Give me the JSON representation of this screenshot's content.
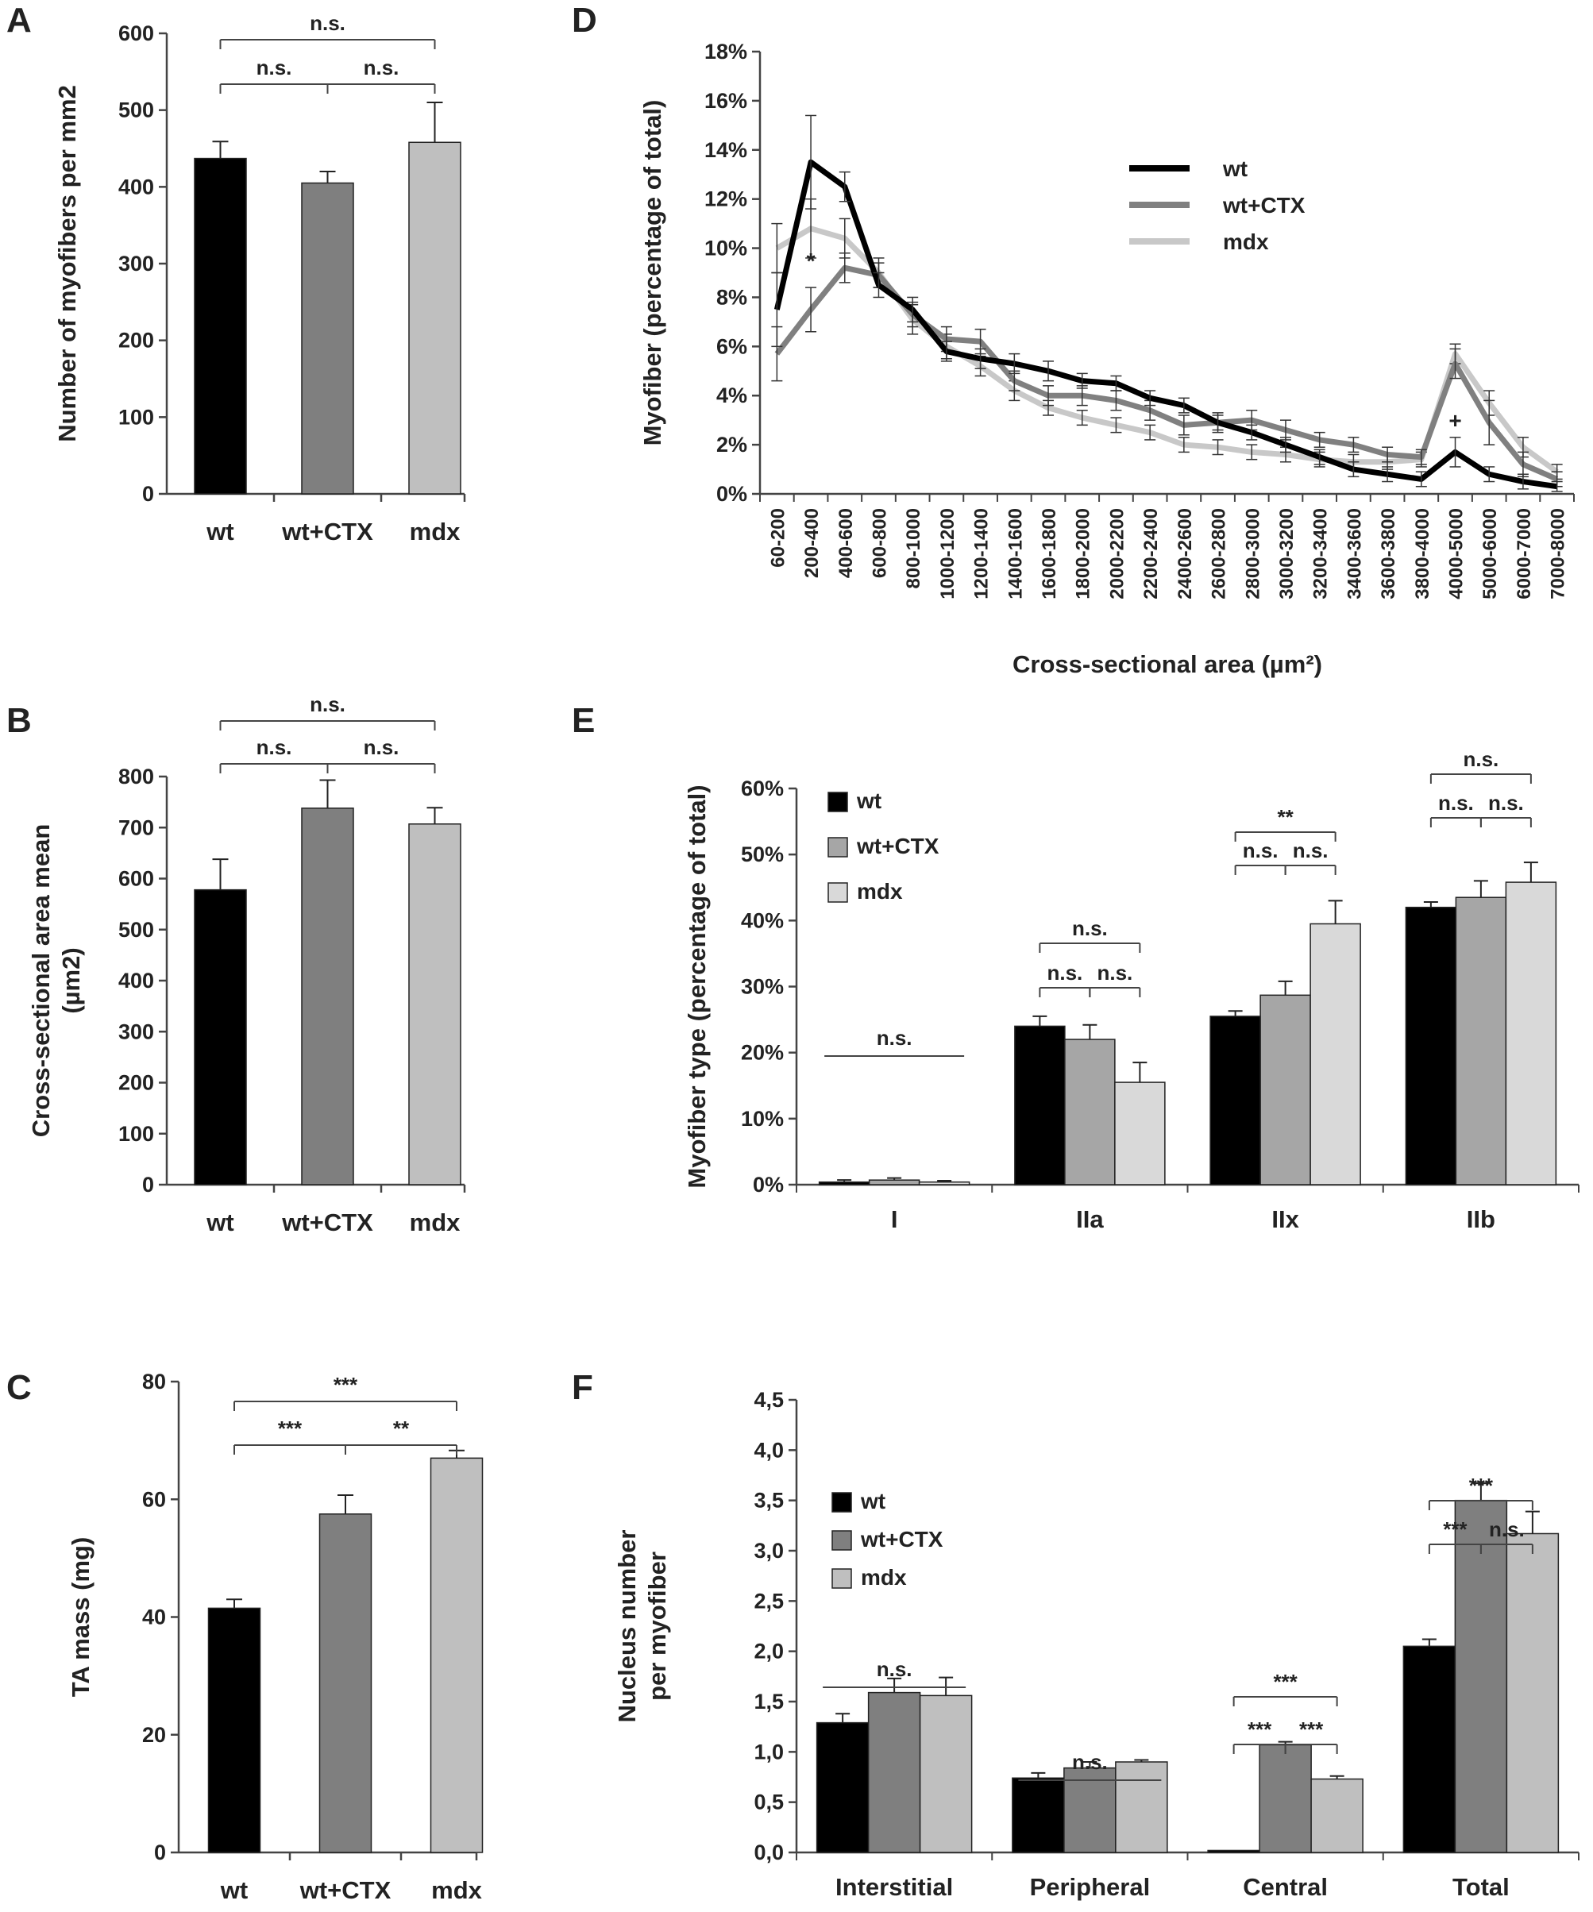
{
  "figure": {
    "series_names": [
      "wt",
      "wt+CTX",
      "mdx"
    ],
    "colors": {
      "wt": "#000000",
      "ctx": "#7f7f7f",
      "mdx": "#bfbfbf",
      "ctx_line": "#808080",
      "mdx_line": "#c8c8c8",
      "e_ctx": "#a6a6a6",
      "e_mdx": "#d9d9d9",
      "axis": "#444444"
    }
  },
  "chart_data": [
    {
      "panel": "A",
      "type": "bar",
      "categories": [
        "wt",
        "wt+CTX",
        "mdx"
      ],
      "values": [
        437,
        405,
        458
      ],
      "errors": [
        22,
        15,
        52
      ],
      "ylabel": "Number of myofibers per mm2",
      "ylim": [
        0,
        600
      ],
      "yticks": [
        "0",
        "100",
        "200",
        "300",
        "400",
        "500",
        "600"
      ],
      "significance": [
        {
          "from": 0,
          "to": 1,
          "label": "n.s."
        },
        {
          "from": 1,
          "to": 2,
          "label": "n.s."
        },
        {
          "from": 0,
          "to": 2,
          "label": "n.s."
        }
      ]
    },
    {
      "panel": "B",
      "type": "bar",
      "categories": [
        "wt",
        "wt+CTX",
        "mdx"
      ],
      "values": [
        578,
        738,
        707
      ],
      "errors": [
        60,
        55,
        32
      ],
      "ylabel_lines": [
        "Cross-sectional area mean",
        "(µm2)"
      ],
      "ylim": [
        0,
        800
      ],
      "yticks": [
        "0",
        "100",
        "200",
        "300",
        "400",
        "500",
        "600",
        "700",
        "800"
      ],
      "significance": [
        {
          "from": 0,
          "to": 1,
          "label": "n.s."
        },
        {
          "from": 1,
          "to": 2,
          "label": "n.s."
        },
        {
          "from": 0,
          "to": 2,
          "label": "n.s."
        }
      ]
    },
    {
      "panel": "C",
      "type": "bar",
      "categories": [
        "wt",
        "wt+CTX",
        "mdx"
      ],
      "values": [
        41.5,
        57.5,
        67
      ],
      "errors": [
        1.5,
        3.2,
        1.3
      ],
      "ylabel": "TA mass (mg)",
      "ylim": [
        0,
        80
      ],
      "yticks": [
        "0",
        "20",
        "40",
        "60",
        "80"
      ],
      "significance": [
        {
          "from": 0,
          "to": 1,
          "label": "***"
        },
        {
          "from": 1,
          "to": 2,
          "label": "**"
        },
        {
          "from": 0,
          "to": 2,
          "label": "***"
        }
      ]
    },
    {
      "panel": "D",
      "type": "line",
      "categories": [
        "60-200",
        "200-400",
        "400-600",
        "600-800",
        "800-1000",
        "1000-1200",
        "1200-1400",
        "1400-1600",
        "1600-1800",
        "1800-2000",
        "2000-2200",
        "2200-2400",
        "2400-2600",
        "2600-2800",
        "2800-3000",
        "3000-3200",
        "3200-3400",
        "3400-3600",
        "3600-3800",
        "3800-4000",
        "4000-5000",
        "5000-6000",
        "6000-7000",
        "7000-8000"
      ],
      "series": [
        {
          "name": "wt",
          "values": [
            7.5,
            13.5,
            12.5,
            8.5,
            7.5,
            5.8,
            5.5,
            5.3,
            5.0,
            4.6,
            4.5,
            3.9,
            3.6,
            2.9,
            2.5,
            2.0,
            1.5,
            1.0,
            0.8,
            0.6,
            1.7,
            0.8,
            0.5,
            0.3
          ],
          "errors": [
            1.5,
            1.9,
            0.6,
            0.5,
            0.5,
            0.4,
            0.4,
            0.4,
            0.4,
            0.3,
            0.3,
            0.3,
            0.3,
            0.3,
            0.3,
            0.3,
            0.3,
            0.3,
            0.3,
            0.3,
            0.6,
            0.3,
            0.3,
            0.2
          ]
        },
        {
          "name": "wt+CTX",
          "values": [
            5.7,
            7.5,
            9.2,
            8.9,
            7.3,
            6.3,
            6.2,
            4.6,
            4.0,
            4.0,
            3.8,
            3.4,
            2.8,
            2.9,
            3.0,
            2.6,
            2.2,
            2.0,
            1.6,
            1.5,
            5.3,
            2.9,
            1.2,
            0.6
          ],
          "errors": [
            1.1,
            0.9,
            0.6,
            0.5,
            0.5,
            0.5,
            0.5,
            0.4,
            0.4,
            0.4,
            0.4,
            0.4,
            0.4,
            0.4,
            0.4,
            0.4,
            0.3,
            0.3,
            0.3,
            0.3,
            0.6,
            0.9,
            0.5,
            0.3
          ]
        },
        {
          "name": "mdx",
          "values": [
            10.0,
            10.8,
            10.4,
            9.0,
            7.1,
            6.0,
            5.2,
            4.2,
            3.5,
            3.1,
            2.8,
            2.5,
            2.0,
            1.9,
            1.7,
            1.6,
            1.4,
            1.3,
            1.3,
            1.4,
            5.7,
            3.7,
            1.9,
            0.9
          ],
          "errors": [
            1.0,
            1.2,
            0.8,
            0.6,
            0.6,
            0.5,
            0.4,
            0.4,
            0.3,
            0.3,
            0.3,
            0.3,
            0.3,
            0.3,
            0.3,
            0.3,
            0.3,
            0.3,
            0.3,
            0.3,
            0.4,
            0.5,
            0.4,
            0.3
          ]
        }
      ],
      "xlabel": "Cross-sectional area (µm²)",
      "ylabel": "Myofiber (percentage of total)",
      "ylim": [
        0,
        18
      ],
      "yticks": [
        "0%",
        "2%",
        "4%",
        "6%",
        "8%",
        "10%",
        "12%",
        "14%",
        "16%",
        "18%"
      ],
      "annotations": [
        {
          "text": "*",
          "category": "200-400",
          "value": 9.5
        },
        {
          "text": "+",
          "category": "4000-5000",
          "value": 3.0
        }
      ],
      "legend": "upper-middle"
    },
    {
      "panel": "E",
      "type": "bar",
      "categories": [
        "I",
        "IIa",
        "IIx",
        "IIb"
      ],
      "series": [
        {
          "name": "wt",
          "values": [
            0.4,
            24,
            25.5,
            42
          ],
          "errors": [
            0.3,
            1.5,
            0.8,
            0.8
          ]
        },
        {
          "name": "wt+CTX",
          "values": [
            0.7,
            22,
            28.7,
            43.5
          ],
          "errors": [
            0.3,
            2.2,
            2.1,
            2.5
          ]
        },
        {
          "name": "mdx",
          "values": [
            0.4,
            15.5,
            39.5,
            45.8
          ],
          "errors": [
            0.2,
            3.0,
            3.5,
            3.0
          ]
        }
      ],
      "ylabel": "Myofiber type  (percentage of total)",
      "ylim": [
        0,
        60
      ],
      "yticks": [
        "0%",
        "10%",
        "20%",
        "30%",
        "40%",
        "50%",
        "60%"
      ],
      "significance": [
        {
          "group": 0,
          "type": "all",
          "label": "n.s."
        },
        {
          "group": 1,
          "pairs": [
            {
              "from": 0,
              "to": 1,
              "label": "n.s."
            },
            {
              "from": 1,
              "to": 2,
              "label": "n.s."
            },
            {
              "from": 0,
              "to": 2,
              "label": "n.s."
            }
          ]
        },
        {
          "group": 2,
          "pairs": [
            {
              "from": 0,
              "to": 1,
              "label": "n.s."
            },
            {
              "from": 1,
              "to": 2,
              "label": "n.s."
            },
            {
              "from": 0,
              "to": 2,
              "label": "**"
            }
          ]
        },
        {
          "group": 3,
          "pairs": [
            {
              "from": 0,
              "to": 1,
              "label": "n.s."
            },
            {
              "from": 1,
              "to": 2,
              "label": "n.s."
            },
            {
              "from": 0,
              "to": 2,
              "label": "n.s."
            }
          ]
        }
      ],
      "legend": "top-left"
    },
    {
      "panel": "F",
      "type": "bar",
      "categories": [
        "Interstitial",
        "Peripheral",
        "Central",
        "Total"
      ],
      "series": [
        {
          "name": "wt",
          "values": [
            1.29,
            0.74,
            0.02,
            2.05
          ],
          "errors": [
            0.09,
            0.05,
            0.0,
            0.07
          ]
        },
        {
          "name": "wt+CTX",
          "values": [
            1.59,
            0.84,
            1.07,
            3.5
          ],
          "errors": [
            0.14,
            0.06,
            0.03,
            0.17
          ]
        },
        {
          "name": "mdx",
          "values": [
            1.56,
            0.9,
            0.73,
            3.17
          ],
          "errors": [
            0.18,
            0.02,
            0.03,
            0.22
          ]
        }
      ],
      "ylabel_lines": [
        "Nucleus number",
        "per myofiber"
      ],
      "ylim": [
        0,
        4.5
      ],
      "yticks": [
        "0,0",
        "0,5",
        "1,0",
        "1,5",
        "2,0",
        "2,5",
        "3,0",
        "3,5",
        "4,0",
        "4,5"
      ],
      "significance": [
        {
          "group": 0,
          "type": "all",
          "label": "n.s."
        },
        {
          "group": 1,
          "type": "all",
          "label": "n.s."
        },
        {
          "group": 2,
          "pairs": [
            {
              "from": 0,
              "to": 1,
              "label": "***"
            },
            {
              "from": 1,
              "to": 2,
              "label": "***"
            },
            {
              "from": 0,
              "to": 2,
              "label": "***"
            }
          ]
        },
        {
          "group": 3,
          "pairs": [
            {
              "from": 0,
              "to": 1,
              "label": "***"
            },
            {
              "from": 1,
              "to": 2,
              "label": "n.s."
            },
            {
              "from": 0,
              "to": 2,
              "label": "***"
            }
          ]
        }
      ],
      "legend": "top-left"
    }
  ]
}
